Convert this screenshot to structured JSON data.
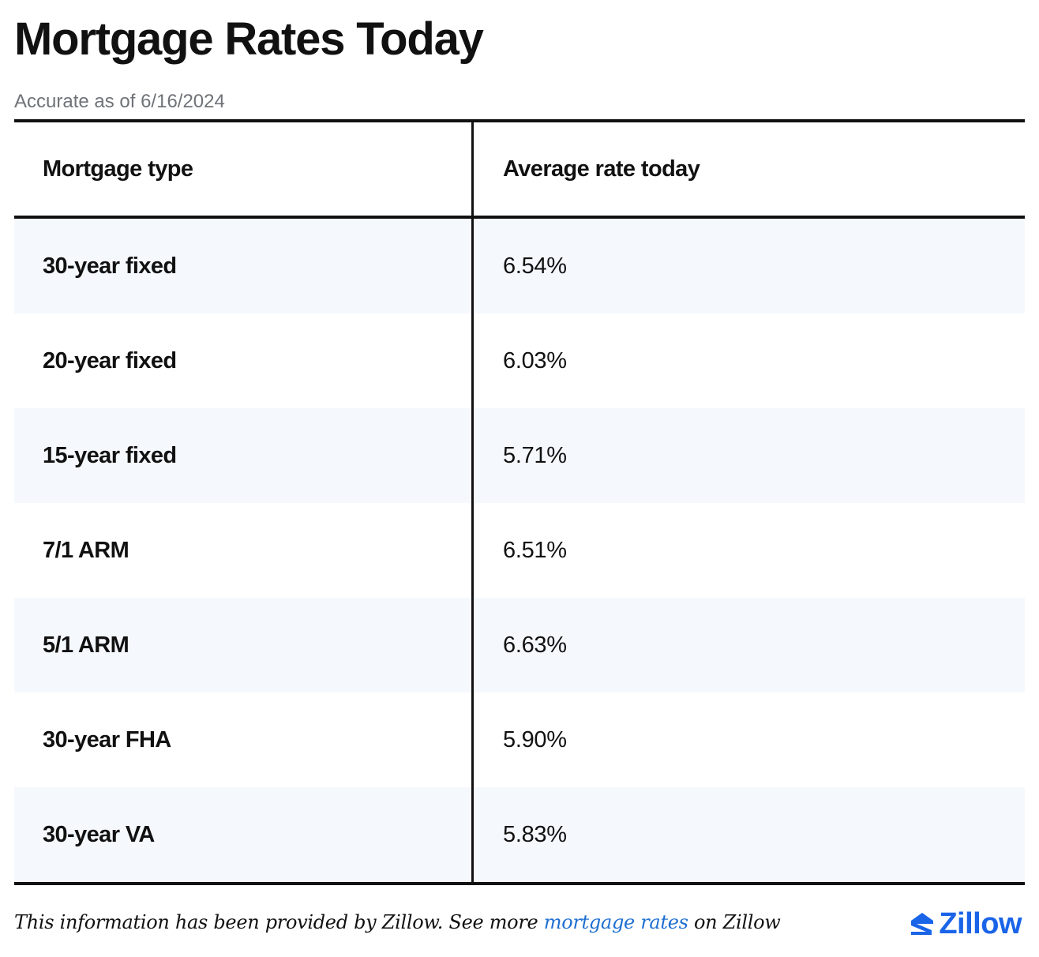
{
  "title": "Mortgage Rates Today",
  "accuracy": "Accurate as of 6/16/2024",
  "table": {
    "headers": {
      "type": "Mortgage type",
      "rate": "Average rate today"
    },
    "rows": [
      {
        "type": "30-year fixed",
        "rate": "6.54%"
      },
      {
        "type": "20-year fixed",
        "rate": "6.03%"
      },
      {
        "type": "15-year fixed",
        "rate": "5.71%"
      },
      {
        "type": "7/1 ARM",
        "rate": "6.51%"
      },
      {
        "type": "5/1 ARM",
        "rate": "6.63%"
      },
      {
        "type": "30-year FHA",
        "rate": "5.90%"
      },
      {
        "type": "30-year VA",
        "rate": "5.83%"
      }
    ]
  },
  "footer": {
    "text_before": "This information has been provided by Zillow. See more ",
    "link_text": "mortgage rates",
    "text_after": " on Zillow",
    "link_color": "#1f6fd1"
  },
  "brand": {
    "name": "Zillow",
    "icon": "zillow-logo-icon",
    "color": "#1a64e8"
  }
}
